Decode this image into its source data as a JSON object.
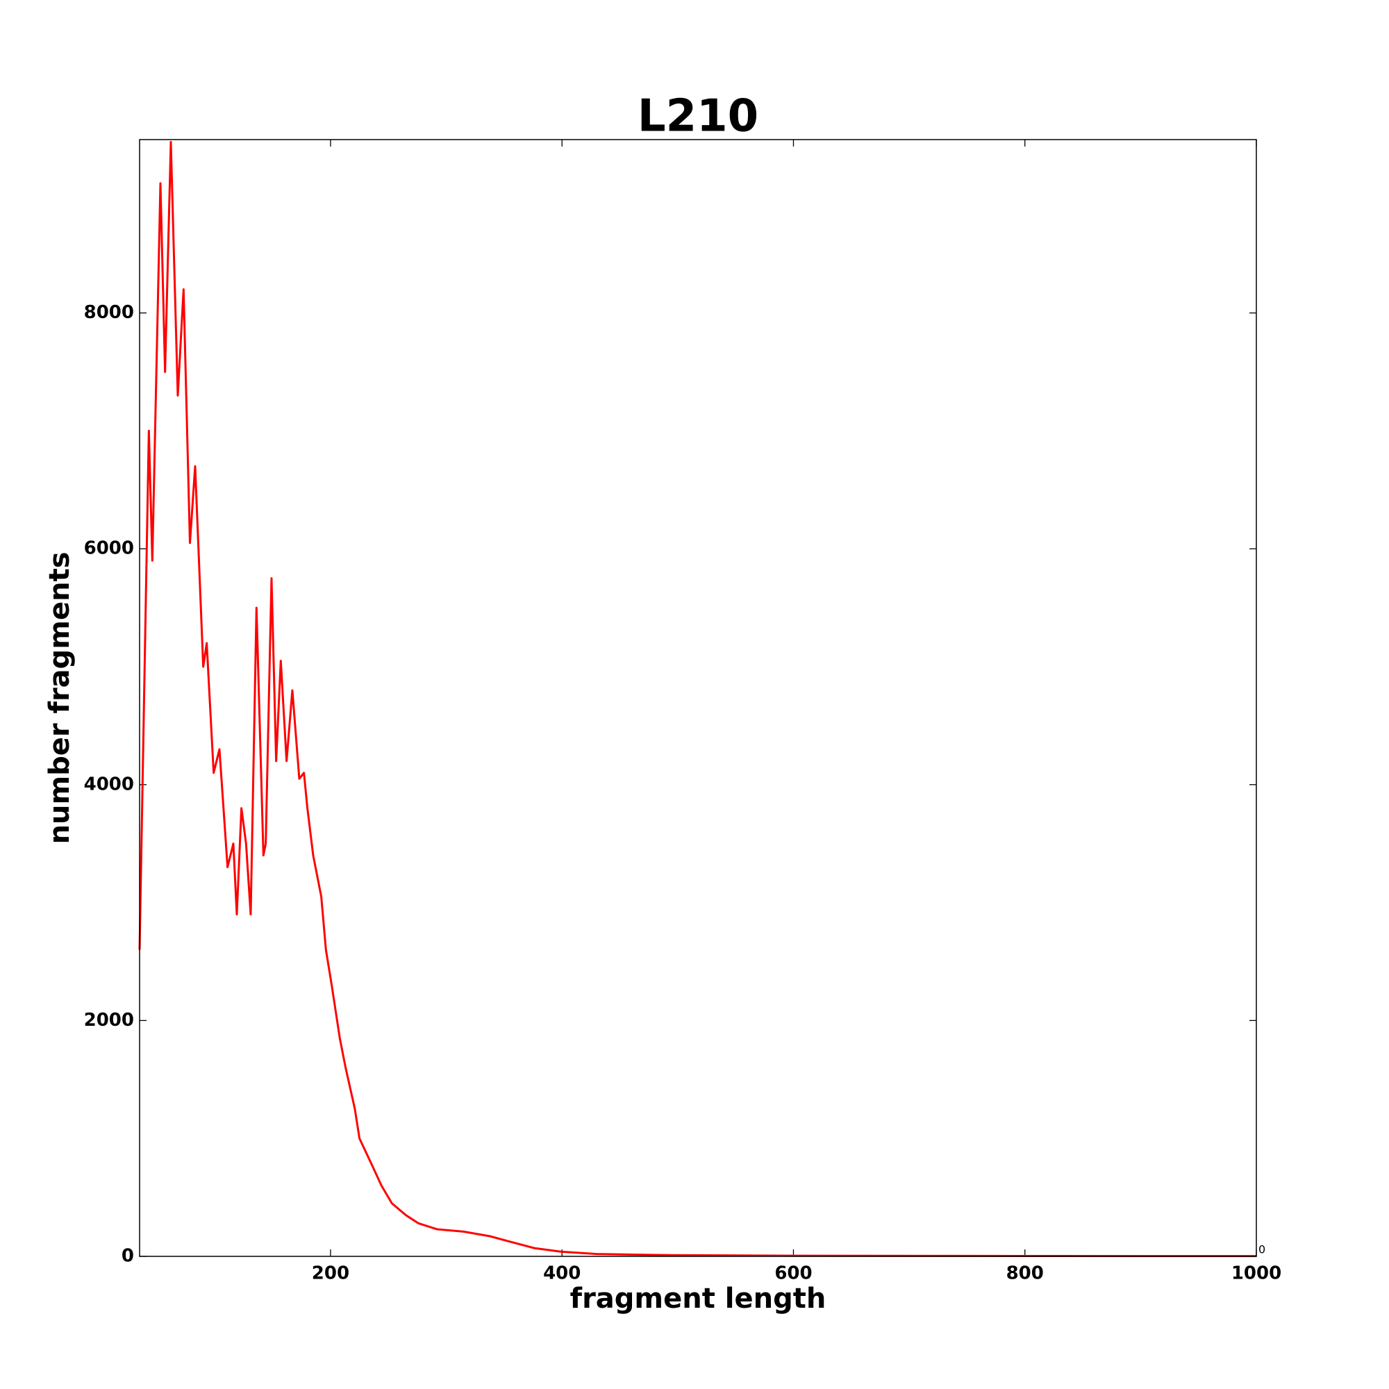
{
  "chart_data": {
    "type": "line",
    "title": "L210",
    "x_label": "fragment length",
    "y_label": "number fragments",
    "annotation": "0",
    "x": [
      35,
      43,
      46,
      53,
      57,
      62,
      68,
      73,
      78.5,
      83,
      90,
      93,
      99,
      104,
      111,
      116,
      119,
      123,
      127,
      131,
      136,
      142,
      144,
      149,
      153,
      157,
      162,
      167,
      173,
      177,
      180,
      185,
      192,
      196,
      201,
      208,
      213,
      221,
      225,
      236,
      244,
      253,
      265,
      276,
      292,
      315,
      338,
      353,
      376,
      399,
      430,
      492,
      607,
      800,
      1000
    ],
    "series": [
      {
        "name": "number fragments",
        "color": "#ff0000",
        "values": [
          2600,
          7000,
          5900,
          9100,
          7500,
          9450,
          7300,
          8200,
          6050,
          6700,
          5000,
          5200,
          4100,
          4300,
          3300,
          3500,
          2900,
          3800,
          3500,
          2900,
          5500,
          3400,
          3500,
          5750,
          4200,
          5050,
          4200,
          4800,
          4050,
          4100,
          3800,
          3400,
          3050,
          2600,
          2300,
          1850,
          1600,
          1250,
          1000,
          770,
          600,
          450,
          350,
          280,
          230,
          210,
          170,
          130,
          70,
          40,
          20,
          10,
          5,
          3,
          2
        ]
      }
    ],
    "xlim": [
      35,
      1000
    ],
    "ylim": [
      0,
      9470
    ],
    "xticks": [
      200,
      400,
      600,
      800,
      1000
    ],
    "yticks": [
      0,
      2000,
      4000,
      6000,
      8000
    ]
  }
}
